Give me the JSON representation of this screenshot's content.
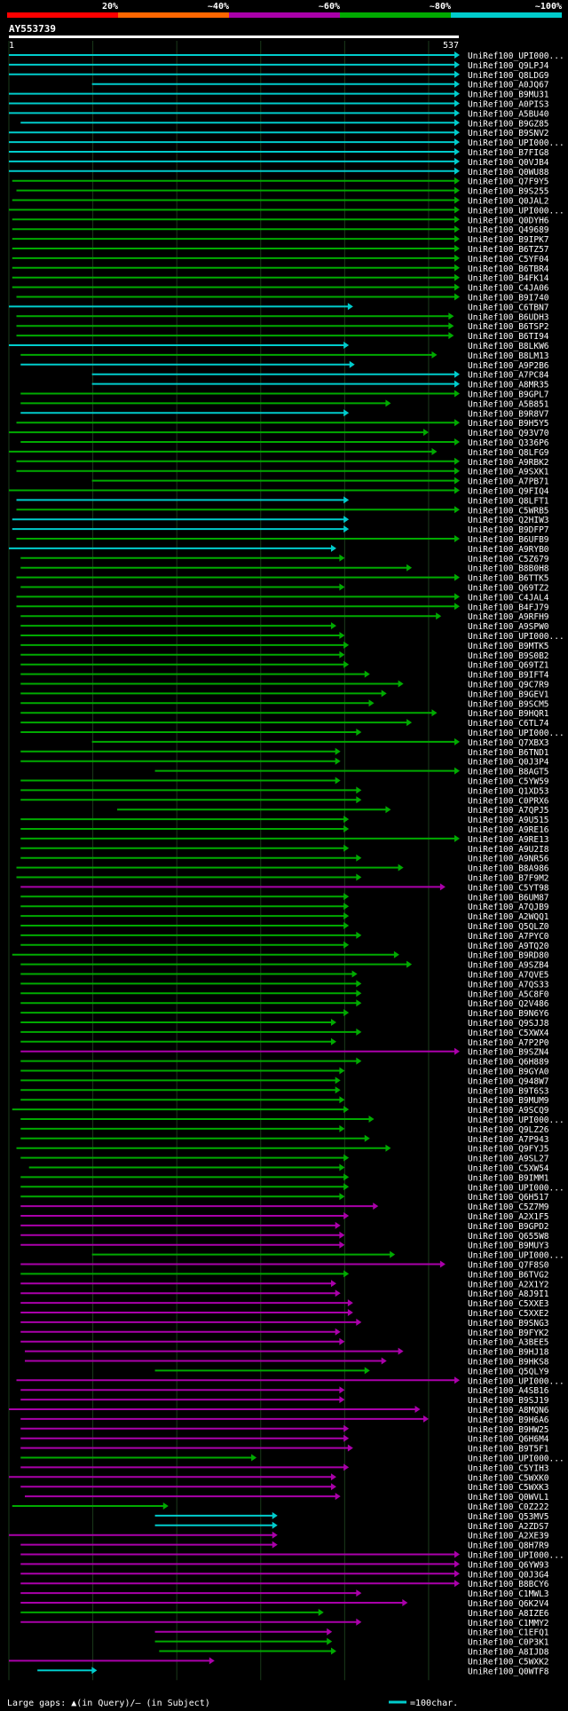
{
  "chart_data": {
    "type": "alignment-overview",
    "title": "AY553739",
    "query_start": "1",
    "query_end": "537",
    "identity_scale": [
      "20%",
      "~40%",
      "~60%",
      "~80%",
      "~100%"
    ],
    "identity_colors": [
      "#ff0000",
      "#ff6600",
      "#aa00aa",
      "#00aa00",
      "#00cccc"
    ],
    "legend": {
      "gaps": "Large gaps: ▲(in Query)/– (in Subject)",
      "scale": "=100char."
    },
    "hits": [
      {
        "name": "UniRef100_UPI000...",
        "start": 1,
        "end": 537,
        "id": 5
      },
      {
        "name": "UniRef100_Q9LPJ4",
        "start": 1,
        "end": 537,
        "id": 5
      },
      {
        "name": "UniRef100_Q8LDG9",
        "start": 1,
        "end": 537,
        "id": 5
      },
      {
        "name": "UniRef100_A0JQ67",
        "start": 100,
        "end": 537,
        "id": 5
      },
      {
        "name": "UniRef100_B9MU31",
        "start": 1,
        "end": 537,
        "id": 5
      },
      {
        "name": "UniRef100_A0PIS3",
        "start": 1,
        "end": 537,
        "id": 5
      },
      {
        "name": "UniRef100_A5BU40",
        "start": 1,
        "end": 537,
        "id": 5
      },
      {
        "name": "UniRef100_B9GZ85",
        "start": 15,
        "end": 537,
        "id": 5
      },
      {
        "name": "UniRef100_B9SNV2",
        "start": 1,
        "end": 537,
        "id": 5
      },
      {
        "name": "UniRef100_UPI000...",
        "start": 1,
        "end": 537,
        "id": 5
      },
      {
        "name": "UniRef100_B7FIG8",
        "start": 1,
        "end": 537,
        "id": 5
      },
      {
        "name": "UniRef100_Q0VJB4",
        "start": 1,
        "end": 537,
        "id": 5
      },
      {
        "name": "UniRef100_Q0WU88",
        "start": 1,
        "end": 537,
        "id": 5
      },
      {
        "name": "UniRef100_Q7F9Y5",
        "start": 5,
        "end": 537,
        "id": 4
      },
      {
        "name": "UniRef100_B9S255",
        "start": 10,
        "end": 537,
        "id": 4
      },
      {
        "name": "UniRef100_Q0JAL2",
        "start": 5,
        "end": 537,
        "id": 4
      },
      {
        "name": "UniRef100_UPI000...",
        "start": 1,
        "end": 537,
        "id": 4
      },
      {
        "name": "UniRef100_Q0DYH6",
        "start": 5,
        "end": 537,
        "id": 4
      },
      {
        "name": "UniRef100_Q49689",
        "start": 5,
        "end": 537,
        "id": 4
      },
      {
        "name": "UniRef100_B9IPK7",
        "start": 5,
        "end": 537,
        "id": 4
      },
      {
        "name": "UniRef100_B6TZ57",
        "start": 5,
        "end": 537,
        "id": 4
      },
      {
        "name": "UniRef100_C5YF04",
        "start": 5,
        "end": 537,
        "id": 4
      },
      {
        "name": "UniRef100_B6TBR4",
        "start": 5,
        "end": 537,
        "id": 4
      },
      {
        "name": "UniRef100_B4FK14",
        "start": 5,
        "end": 537,
        "id": 4
      },
      {
        "name": "UniRef100_C4JA06",
        "start": 5,
        "end": 537,
        "id": 4
      },
      {
        "name": "UniRef100_B9I740",
        "start": 10,
        "end": 537,
        "id": 4
      },
      {
        "name": "UniRef100_C6TBN7",
        "start": 1,
        "end": 410,
        "id": 5
      },
      {
        "name": "UniRef100_B6UDH3",
        "start": 10,
        "end": 530,
        "id": 4
      },
      {
        "name": "UniRef100_B6TSP2",
        "start": 10,
        "end": 530,
        "id": 4
      },
      {
        "name": "UniRef100_B6TI94",
        "start": 10,
        "end": 530,
        "id": 4
      },
      {
        "name": "UniRef100_B8LKW6",
        "start": 1,
        "end": 405,
        "id": 5
      },
      {
        "name": "UniRef100_B8LM13",
        "start": 15,
        "end": 510,
        "id": 4
      },
      {
        "name": "UniRef100_A9P2B6",
        "start": 15,
        "end": 412,
        "id": 5
      },
      {
        "name": "UniRef100_A7PC84",
        "start": 100,
        "end": 537,
        "id": 5
      },
      {
        "name": "UniRef100_A8MR35",
        "start": 100,
        "end": 537,
        "id": 5
      },
      {
        "name": "UniRef100_B9GPL7",
        "start": 15,
        "end": 537,
        "id": 4
      },
      {
        "name": "UniRef100_A5B851",
        "start": 15,
        "end": 455,
        "id": 4
      },
      {
        "name": "UniRef100_B9R8V7",
        "start": 15,
        "end": 405,
        "id": 5
      },
      {
        "name": "UniRef100_B9H5Y5",
        "start": 10,
        "end": 537,
        "id": 4
      },
      {
        "name": "UniRef100_Q93V70",
        "start": 1,
        "end": 500,
        "id": 4
      },
      {
        "name": "UniRef100_Q336P6",
        "start": 15,
        "end": 537,
        "id": 4
      },
      {
        "name": "UniRef100_Q8LFG9",
        "start": 1,
        "end": 510,
        "id": 4
      },
      {
        "name": "UniRef100_A9RBK2",
        "start": 10,
        "end": 537,
        "id": 4
      },
      {
        "name": "UniRef100_A9SXK1",
        "start": 10,
        "end": 537,
        "id": 4
      },
      {
        "name": "UniRef100_A7PB71",
        "start": 100,
        "end": 537,
        "id": 4
      },
      {
        "name": "UniRef100_Q9FIQ4",
        "start": 1,
        "end": 537,
        "id": 4
      },
      {
        "name": "UniRef100_Q8LFT1",
        "start": 10,
        "end": 405,
        "id": 5
      },
      {
        "name": "UniRef100_C5WRB5",
        "start": 10,
        "end": 537,
        "id": 4
      },
      {
        "name": "UniRef100_Q2HIW3",
        "start": 5,
        "end": 405,
        "id": 5
      },
      {
        "name": "UniRef100_B9DFP7",
        "start": 5,
        "end": 405,
        "id": 5
      },
      {
        "name": "UniRef100_B6UFB9",
        "start": 10,
        "end": 537,
        "id": 4
      },
      {
        "name": "UniRef100_A9RYB0",
        "start": 1,
        "end": 390,
        "id": 5
      },
      {
        "name": "UniRef100_C5Z679",
        "start": 15,
        "end": 400,
        "id": 4
      },
      {
        "name": "UniRef100_B8B0H8",
        "start": 15,
        "end": 480,
        "id": 4
      },
      {
        "name": "UniRef100_B6TTK5",
        "start": 10,
        "end": 537,
        "id": 4
      },
      {
        "name": "UniRef100_Q69TZ2",
        "start": 15,
        "end": 400,
        "id": 4
      },
      {
        "name": "UniRef100_C4JAL4",
        "start": 10,
        "end": 537,
        "id": 4
      },
      {
        "name": "UniRef100_B4FJ79",
        "start": 10,
        "end": 537,
        "id": 4
      },
      {
        "name": "UniRef100_A9RFH9",
        "start": 15,
        "end": 515,
        "id": 4
      },
      {
        "name": "UniRef100_A9SPW0",
        "start": 15,
        "end": 390,
        "id": 4
      },
      {
        "name": "UniRef100_UPI000...",
        "start": 15,
        "end": 400,
        "id": 4
      },
      {
        "name": "UniRef100_B9MTK5",
        "start": 15,
        "end": 405,
        "id": 4
      },
      {
        "name": "UniRef100_B9S0B2",
        "start": 15,
        "end": 400,
        "id": 4
      },
      {
        "name": "UniRef100_Q69TZ1",
        "start": 15,
        "end": 405,
        "id": 4
      },
      {
        "name": "UniRef100_B9IFT4",
        "start": 15,
        "end": 430,
        "id": 4
      },
      {
        "name": "UniRef100_Q9C7R9",
        "start": 15,
        "end": 470,
        "id": 4
      },
      {
        "name": "UniRef100_B9GEV1",
        "start": 15,
        "end": 450,
        "id": 4
      },
      {
        "name": "UniRef100_B9SCM5",
        "start": 15,
        "end": 435,
        "id": 4
      },
      {
        "name": "UniRef100_B9HQR1",
        "start": 15,
        "end": 510,
        "id": 4
      },
      {
        "name": "UniRef100_C6TL74",
        "start": 15,
        "end": 480,
        "id": 4
      },
      {
        "name": "UniRef100_UPI000...",
        "start": 15,
        "end": 420,
        "id": 4
      },
      {
        "name": "UniRef100_Q7XBX3",
        "start": 100,
        "end": 537,
        "id": 4
      },
      {
        "name": "UniRef100_B6TND1",
        "start": 15,
        "end": 395,
        "id": 4
      },
      {
        "name": "UniRef100_Q0J3P4",
        "start": 15,
        "end": 395,
        "id": 4
      },
      {
        "name": "UniRef100_B8AGT5",
        "start": 175,
        "end": 537,
        "id": 4
      },
      {
        "name": "UniRef100_C5YW59",
        "start": 15,
        "end": 395,
        "id": 4
      },
      {
        "name": "UniRef100_Q1XD53",
        "start": 15,
        "end": 420,
        "id": 4
      },
      {
        "name": "UniRef100_C0PRX6",
        "start": 15,
        "end": 420,
        "id": 4
      },
      {
        "name": "UniRef100_A7QPJ5",
        "start": 130,
        "end": 455,
        "id": 4
      },
      {
        "name": "UniRef100_A9U515",
        "start": 15,
        "end": 405,
        "id": 4
      },
      {
        "name": "UniRef100_A9RE16",
        "start": 15,
        "end": 405,
        "id": 4
      },
      {
        "name": "UniRef100_A9RE13",
        "start": 15,
        "end": 537,
        "id": 4
      },
      {
        "name": "UniRef100_A9U2I8",
        "start": 15,
        "end": 405,
        "id": 4
      },
      {
        "name": "UniRef100_A9NR56",
        "start": 15,
        "end": 420,
        "id": 4
      },
      {
        "name": "UniRef100_B8A986",
        "start": 10,
        "end": 470,
        "id": 4
      },
      {
        "name": "UniRef100_B7F9M2",
        "start": 10,
        "end": 420,
        "id": 4
      },
      {
        "name": "UniRef100_C5YT98",
        "start": 15,
        "end": 520,
        "id": 3
      },
      {
        "name": "UniRef100_B6UM87",
        "start": 15,
        "end": 405,
        "id": 4
      },
      {
        "name": "UniRef100_A7QJB9",
        "start": 15,
        "end": 405,
        "id": 4
      },
      {
        "name": "UniRef100_A2WQQ1",
        "start": 15,
        "end": 405,
        "id": 4
      },
      {
        "name": "UniRef100_Q5QLZ0",
        "start": 15,
        "end": 405,
        "id": 4
      },
      {
        "name": "UniRef100_A7PYC0",
        "start": 15,
        "end": 420,
        "id": 4
      },
      {
        "name": "UniRef100_A9TQ20",
        "start": 15,
        "end": 405,
        "id": 4
      },
      {
        "name": "UniRef100_B9RD80",
        "start": 5,
        "end": 465,
        "id": 4
      },
      {
        "name": "UniRef100_A9SZB4",
        "start": 15,
        "end": 480,
        "id": 4
      },
      {
        "name": "UniRef100_A7QVE5",
        "start": 15,
        "end": 415,
        "id": 4
      },
      {
        "name": "UniRef100_A7QS33",
        "start": 15,
        "end": 420,
        "id": 4
      },
      {
        "name": "UniRef100_A5C8F0",
        "start": 15,
        "end": 420,
        "id": 4
      },
      {
        "name": "UniRef100_Q2V486",
        "start": 15,
        "end": 420,
        "id": 4
      },
      {
        "name": "UniRef100_B9N6Y6",
        "start": 15,
        "end": 405,
        "id": 4
      },
      {
        "name": "UniRef100_Q9SJJ8",
        "start": 15,
        "end": 390,
        "id": 4
      },
      {
        "name": "UniRef100_C5XWX4",
        "start": 15,
        "end": 420,
        "id": 4
      },
      {
        "name": "UniRef100_A7P2P0",
        "start": 15,
        "end": 390,
        "id": 4
      },
      {
        "name": "UniRef100_B9SZN4",
        "start": 15,
        "end": 537,
        "id": 3
      },
      {
        "name": "UniRef100_Q6H889",
        "start": 15,
        "end": 420,
        "id": 4
      },
      {
        "name": "UniRef100_B9GYA0",
        "start": 15,
        "end": 400,
        "id": 4
      },
      {
        "name": "UniRef100_Q948W7",
        "start": 15,
        "end": 395,
        "id": 4
      },
      {
        "name": "UniRef100_B9T6S3",
        "start": 15,
        "end": 395,
        "id": 4
      },
      {
        "name": "UniRef100_B9MUM9",
        "start": 15,
        "end": 400,
        "id": 4
      },
      {
        "name": "UniRef100_A9SCQ9",
        "start": 5,
        "end": 405,
        "id": 4
      },
      {
        "name": "UniRef100_UPI000...",
        "start": 15,
        "end": 435,
        "id": 4
      },
      {
        "name": "UniRef100_Q9LZ26",
        "start": 15,
        "end": 400,
        "id": 4
      },
      {
        "name": "UniRef100_A7P943",
        "start": 15,
        "end": 430,
        "id": 4
      },
      {
        "name": "UniRef100_Q9FYJ5",
        "start": 10,
        "end": 455,
        "id": 4
      },
      {
        "name": "UniRef100_A9SL27",
        "start": 15,
        "end": 405,
        "id": 4
      },
      {
        "name": "UniRef100_C5XW54",
        "start": 25,
        "end": 400,
        "id": 4
      },
      {
        "name": "UniRef100_B9IMM1",
        "start": 15,
        "end": 405,
        "id": 4
      },
      {
        "name": "UniRef100_UPI000...",
        "start": 15,
        "end": 405,
        "id": 4
      },
      {
        "name": "UniRef100_Q6H517",
        "start": 15,
        "end": 400,
        "id": 4
      },
      {
        "name": "UniRef100_C5Z7M9",
        "start": 15,
        "end": 440,
        "id": 3
      },
      {
        "name": "UniRef100_A2X1F5",
        "start": 15,
        "end": 405,
        "id": 3
      },
      {
        "name": "UniRef100_B9GPD2",
        "start": 15,
        "end": 395,
        "id": 3
      },
      {
        "name": "UniRef100_Q655W8",
        "start": 15,
        "end": 400,
        "id": 3
      },
      {
        "name": "UniRef100_B9MUY3",
        "start": 15,
        "end": 400,
        "id": 3
      },
      {
        "name": "UniRef100_UPI000...",
        "start": 100,
        "end": 460,
        "id": 4
      },
      {
        "name": "UniRef100_Q7F8S0",
        "start": 15,
        "end": 520,
        "id": 3
      },
      {
        "name": "UniRef100_B6TVG2",
        "start": 15,
        "end": 405,
        "id": 4
      },
      {
        "name": "UniRef100_A2X1Y2",
        "start": 15,
        "end": 390,
        "id": 3
      },
      {
        "name": "UniRef100_A8J9I1",
        "start": 15,
        "end": 395,
        "id": 3
      },
      {
        "name": "UniRef100_C5XXE3",
        "start": 15,
        "end": 410,
        "id": 3
      },
      {
        "name": "UniRef100_C5XXE2",
        "start": 15,
        "end": 410,
        "id": 3
      },
      {
        "name": "UniRef100_B9SNG3",
        "start": 15,
        "end": 420,
        "id": 3
      },
      {
        "name": "UniRef100_B9FYK2",
        "start": 15,
        "end": 395,
        "id": 3
      },
      {
        "name": "UniRef100_A3BEE5",
        "start": 15,
        "end": 400,
        "id": 3
      },
      {
        "name": "UniRef100_B9HJ18",
        "start": 20,
        "end": 470,
        "id": 3
      },
      {
        "name": "UniRef100_B9HKS8",
        "start": 20,
        "end": 450,
        "id": 3
      },
      {
        "name": "UniRef100_Q5QLY9",
        "start": 175,
        "end": 430,
        "id": 4
      },
      {
        "name": "UniRef100_UPI000...",
        "start": 10,
        "end": 537,
        "id": 3
      },
      {
        "name": "UniRef100_A4SB16",
        "start": 15,
        "end": 400,
        "id": 3
      },
      {
        "name": "UniRef100_B9SJ19",
        "start": 15,
        "end": 400,
        "id": 3
      },
      {
        "name": "UniRef100_A8MQN6",
        "start": 1,
        "end": 490,
        "id": 3
      },
      {
        "name": "UniRef100_B9H6A6",
        "start": 15,
        "end": 500,
        "id": 3
      },
      {
        "name": "UniRef100_B9HW25",
        "start": 15,
        "end": 405,
        "id": 3
      },
      {
        "name": "UniRef100_Q6H6M4",
        "start": 15,
        "end": 405,
        "id": 3
      },
      {
        "name": "UniRef100_B9T5F1",
        "start": 15,
        "end": 410,
        "id": 3
      },
      {
        "name": "UniRef100_UPI000...",
        "start": 15,
        "end": 295,
        "id": 4
      },
      {
        "name": "UniRef100_C5YIH3",
        "start": 15,
        "end": 405,
        "id": 3
      },
      {
        "name": "UniRef100_C5WXK0",
        "start": 1,
        "end": 390,
        "id": 3
      },
      {
        "name": "UniRef100_C5WXK3",
        "start": 15,
        "end": 390,
        "id": 3
      },
      {
        "name": "UniRef100_Q0WVL1",
        "start": 20,
        "end": 395,
        "id": 3
      },
      {
        "name": "UniRef100_C0Z222",
        "start": 5,
        "end": 190,
        "id": 4
      },
      {
        "name": "UniRef100_Q53MV5",
        "start": 175,
        "end": 320,
        "id": 5
      },
      {
        "name": "UniRef100_A2ZDS7",
        "start": 175,
        "end": 320,
        "id": 5
      },
      {
        "name": "UniRef100_A2XE39",
        "start": 1,
        "end": 320,
        "id": 3
      },
      {
        "name": "UniRef100_Q8H7R9",
        "start": 15,
        "end": 320,
        "id": 3
      },
      {
        "name": "UniRef100_UPI000...",
        "start": 15,
        "end": 537,
        "id": 3
      },
      {
        "name": "UniRef100_Q6YW93",
        "start": 15,
        "end": 537,
        "id": 3
      },
      {
        "name": "UniRef100_Q0J3G4",
        "start": 15,
        "end": 537,
        "id": 3
      },
      {
        "name": "UniRef100_B8BCY6",
        "start": 15,
        "end": 537,
        "id": 3
      },
      {
        "name": "UniRef100_C1MWL3",
        "start": 15,
        "end": 420,
        "id": 3
      },
      {
        "name": "UniRef100_Q6K2V4",
        "start": 15,
        "end": 475,
        "id": 3
      },
      {
        "name": "UniRef100_A8IZE6",
        "start": 15,
        "end": 375,
        "id": 4
      },
      {
        "name": "UniRef100_C1MMY2",
        "start": 15,
        "end": 420,
        "id": 3
      },
      {
        "name": "UniRef100_C1EFQ1",
        "start": 175,
        "end": 385,
        "id": 3
      },
      {
        "name": "UniRef100_C0P3K1",
        "start": 175,
        "end": 385,
        "id": 4
      },
      {
        "name": "UniRef100_A8IJD8",
        "start": 180,
        "end": 390,
        "id": 4
      },
      {
        "name": "UniRef100_C5WXK2",
        "start": 1,
        "end": 245,
        "id": 3
      },
      {
        "name": "UniRef100_Q0WTF8",
        "start": 35,
        "end": 105,
        "id": 5
      }
    ]
  }
}
